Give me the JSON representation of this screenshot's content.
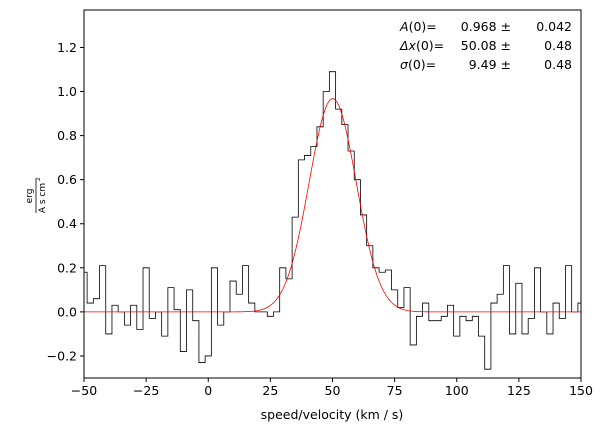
{
  "chart_data": {
    "type": "line",
    "xlabel": "speed/velocity (km / s)",
    "ylabel": {
      "numerator": "erg",
      "denominator": "A s cm",
      "exponent": "2"
    },
    "xlim": [
      -50,
      150
    ],
    "ylim": [
      -0.3,
      1.37
    ],
    "xticks": [
      -50,
      -25,
      0,
      25,
      50,
      75,
      100,
      125,
      150
    ],
    "xtick_labels": [
      "−50",
      "−25",
      "0",
      "25",
      "50",
      "75",
      "100",
      "125",
      "150"
    ],
    "yticks": [
      -0.2,
      0.0,
      0.2,
      0.4,
      0.6,
      0.8,
      1.0,
      1.2
    ],
    "ytick_labels": [
      "−0.2",
      "0.0",
      "0.2",
      "0.4",
      "0.6",
      "0.8",
      "1.0",
      "1.2"
    ],
    "grid": false,
    "series": [
      {
        "style": "steps-mid",
        "color": "#000000",
        "x": [
          -50,
          -47.5,
          -45,
          -42.5,
          -40,
          -37.5,
          -35,
          -32.5,
          -30,
          -27.5,
          -25,
          -22.5,
          -20,
          -17.5,
          -15,
          -12.5,
          -10,
          -7.5,
          -5,
          -2.5,
          0,
          2.5,
          5,
          7.5,
          10,
          12.5,
          15,
          17.5,
          20,
          22.5,
          25,
          27.5,
          30,
          32.5,
          35,
          37.5,
          40,
          42.5,
          45,
          47.5,
          50,
          52.5,
          55,
          57.5,
          60,
          62.5,
          65,
          67.5,
          70,
          72.5,
          75,
          77.5,
          80,
          82.5,
          85,
          87.5,
          90,
          92.5,
          95,
          97.5,
          100,
          102.5,
          105,
          107.5,
          110,
          112.5,
          115,
          117.5,
          120,
          122.5,
          125,
          127.5,
          130,
          132.5,
          135,
          137.5,
          140,
          142.5,
          145,
          147.5,
          150
        ],
        "y": [
          0.18,
          0.04,
          0.06,
          0.21,
          -0.1,
          0.03,
          0.0,
          -0.06,
          0.03,
          -0.08,
          0.2,
          -0.03,
          0.0,
          -0.11,
          0.11,
          0.01,
          -0.18,
          0.1,
          -0.04,
          -0.23,
          -0.2,
          0.2,
          -0.06,
          0.0,
          0.14,
          0.08,
          0.21,
          0.04,
          0.0,
          0.0,
          -0.02,
          0.0,
          0.2,
          0.15,
          0.43,
          0.69,
          0.71,
          0.75,
          0.84,
          1.0,
          1.09,
          0.92,
          0.85,
          0.73,
          0.6,
          0.44,
          0.3,
          0.2,
          0.18,
          0.19,
          0.1,
          0.02,
          0.11,
          -0.15,
          -0.02,
          0.04,
          -0.04,
          -0.04,
          -0.02,
          0.03,
          -0.11,
          -0.02,
          -0.04,
          -0.02,
          -0.11,
          -0.26,
          0.04,
          0.08,
          0.21,
          -0.1,
          0.13,
          -0.1,
          -0.03,
          0.2,
          0.0,
          -0.1,
          0.04,
          -0.03,
          0.21,
          0.0,
          0.04
        ]
      },
      {
        "style": "line",
        "color": "#ff0000",
        "model": "gaussian",
        "amplitude": 0.968,
        "mean": 50.08,
        "stddev": 9.49
      }
    ],
    "annotations": [
      {
        "label": "A",
        "arg": "(0)=",
        "value": "0.968 ±",
        "error": "0.042"
      },
      {
        "label": "Δx",
        "arg": "(0)=",
        "value": "50.08 ±",
        "error": "0.48"
      },
      {
        "label": "σ",
        "arg": "(0)=",
        "value": "9.49 ±",
        "error": "0.48"
      }
    ]
  }
}
